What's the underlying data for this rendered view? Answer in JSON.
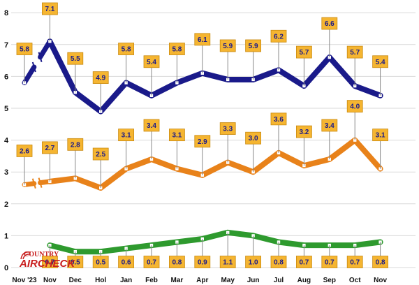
{
  "chart_data": {
    "type": "line",
    "categories": [
      "Nov '23",
      "Nov",
      "Dec",
      "Hol",
      "Jan",
      "Feb",
      "Mar",
      "Apr",
      "May",
      "Jun",
      "Jul",
      "Aug",
      "Sep",
      "Oct",
      "Nov"
    ],
    "ylim": [
      0,
      8
    ],
    "yticks": [
      "0",
      "1",
      "2",
      "3",
      "4",
      "5",
      "6",
      "7",
      "8"
    ],
    "grid": true,
    "series": [
      {
        "name": "navy",
        "color": "#1a1a8a",
        "values": [
          5.8,
          7.1,
          5.5,
          4.9,
          5.8,
          5.4,
          5.8,
          6.1,
          5.9,
          5.9,
          6.2,
          5.7,
          6.6,
          5.7,
          5.4
        ],
        "labels": [
          "5.8",
          "7.1",
          "5.5",
          "4.9",
          "5.8",
          "5.4",
          "5.8",
          "6.1",
          "5.9",
          "5.9",
          "6.2",
          "5.7",
          "6.6",
          "5.7",
          "5.4"
        ],
        "label_position": "above",
        "break_after_index": 0
      },
      {
        "name": "orange",
        "color": "#e8821a",
        "values": [
          2.6,
          2.7,
          2.8,
          2.5,
          3.1,
          3.4,
          3.1,
          2.9,
          3.3,
          3.0,
          3.6,
          3.2,
          3.4,
          4.0,
          3.1
        ],
        "labels": [
          "2.6",
          "2.7",
          "2.8",
          "2.5",
          "3.1",
          "3.4",
          "3.1",
          "2.9",
          "3.3",
          "3.0",
          "3.6",
          "3.2",
          "3.4",
          "4.0",
          "3.1"
        ],
        "label_position": "above",
        "break_after_index": 0
      },
      {
        "name": "green",
        "color": "#2e9a2e",
        "values": [
          null,
          0.7,
          0.5,
          0.5,
          0.6,
          0.7,
          0.8,
          0.9,
          1.1,
          1.0,
          0.8,
          0.7,
          0.7,
          0.7,
          0.8
        ],
        "labels": [
          "",
          "0.7",
          "0.5",
          "0.5",
          "0.6",
          "0.7",
          "0.8",
          "0.9",
          "1.1",
          "1.0",
          "0.8",
          "0.7",
          "0.7",
          "0.7",
          "0.8"
        ],
        "label_position": "bottom",
        "break_after_index": null
      }
    ],
    "logo_text": [
      "COUNTRY",
      "AIRCHECK"
    ]
  },
  "colors": {
    "label_box": "#f5b531",
    "label_border": "#c98a10",
    "label_text": "#1a1a8a",
    "grid": "#d9d9d9",
    "marker": "#ffffff"
  }
}
